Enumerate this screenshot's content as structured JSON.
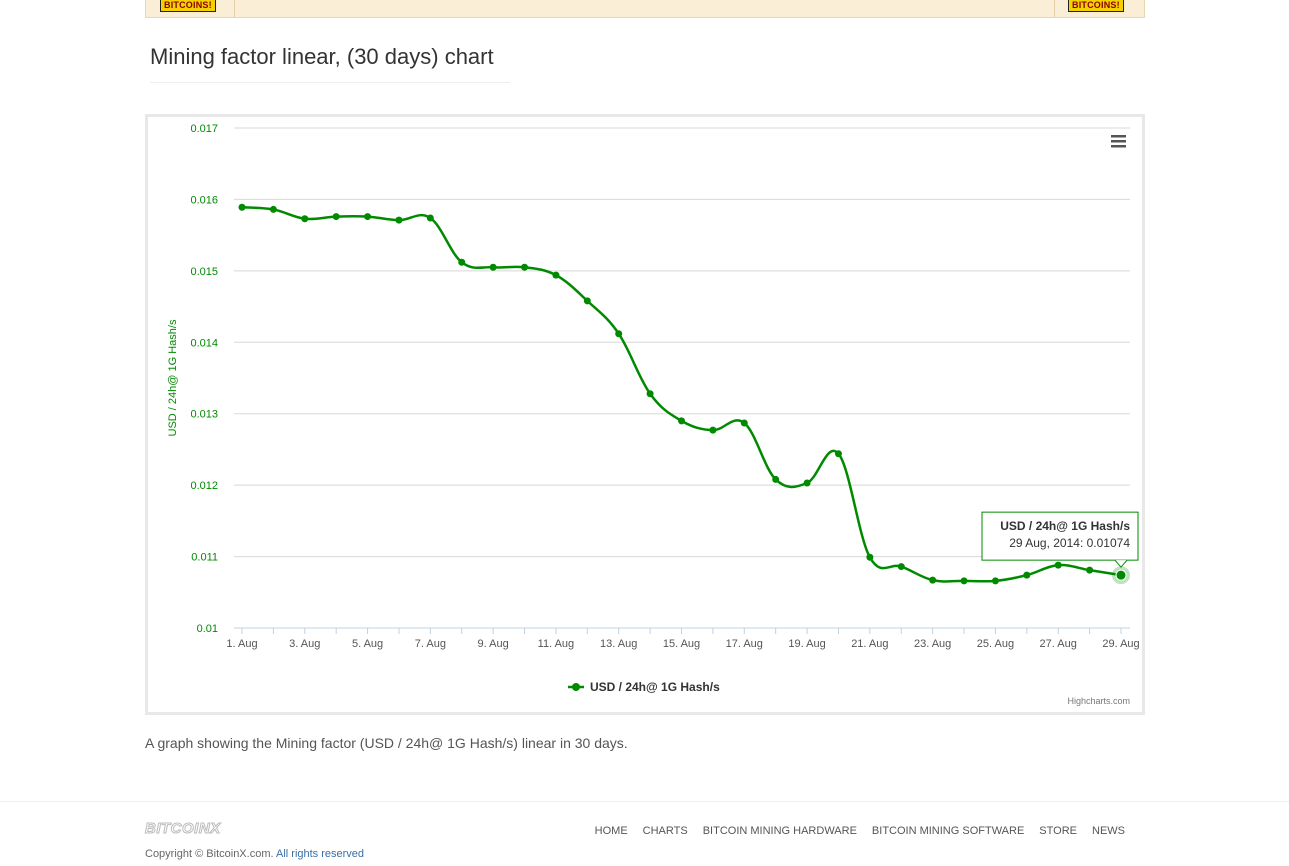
{
  "banner": {
    "left_badge": "BITCOINS!",
    "right_badge": "BITCOINS!"
  },
  "page_title": "Mining factor linear, (30 days) chart",
  "caption": "A graph showing the Mining factor (USD / 24h@ 1G Hash/s) linear in 30 days.",
  "footer": {
    "logo": "BITCOINX",
    "copyright": "Copyright © BitcoinX.com.",
    "rights": "All rights reserved",
    "nav": [
      "HOME",
      "CHARTS",
      "BITCOIN MINING HARDWARE",
      "BITCOIN MINING SOFTWARE",
      "STORE",
      "NEWS"
    ]
  },
  "chart_data": {
    "type": "line",
    "title": "",
    "xlabel": "",
    "ylabel": "USD / 24h@ 1G Hash/s",
    "x": [
      "1. Aug",
      "2. Aug",
      "3. Aug",
      "4. Aug",
      "5. Aug",
      "6. Aug",
      "7. Aug",
      "8. Aug",
      "9. Aug",
      "10. Aug",
      "11. Aug",
      "12. Aug",
      "13. Aug",
      "14. Aug",
      "15. Aug",
      "16. Aug",
      "17. Aug",
      "18. Aug",
      "19. Aug",
      "20. Aug",
      "21. Aug",
      "22. Aug",
      "23. Aug",
      "24. Aug",
      "25. Aug",
      "26. Aug",
      "27. Aug",
      "28. Aug",
      "29. Aug"
    ],
    "x_tick_labels": [
      "1. Aug",
      "3. Aug",
      "5. Aug",
      "7. Aug",
      "9. Aug",
      "11. Aug",
      "13. Aug",
      "15. Aug",
      "17. Aug",
      "19. Aug",
      "21. Aug",
      "23. Aug",
      "25. Aug",
      "27. Aug",
      "29. Aug"
    ],
    "y_ticks": [
      "0.01",
      "0.011",
      "0.012",
      "0.013",
      "0.014",
      "0.015",
      "0.016",
      "0.017"
    ],
    "ylim": [
      0.01,
      0.017
    ],
    "series": [
      {
        "name": "USD / 24h@ 1G Hash/s",
        "color": "#008a00",
        "values": [
          0.01589,
          0.01586,
          0.01573,
          0.01576,
          0.01576,
          0.01571,
          0.01574,
          0.01512,
          0.01505,
          0.01505,
          0.01494,
          0.01458,
          0.01412,
          0.01328,
          0.0129,
          0.01277,
          0.01287,
          0.01208,
          0.01203,
          0.01244,
          0.01099,
          0.01086,
          0.01067,
          0.01066,
          0.01066,
          0.01074,
          0.01088,
          0.01081,
          0.01074
        ]
      }
    ],
    "grid": true,
    "legend": "bottom-center",
    "tooltip": {
      "title": "USD / 24h@ 1G Hash/s",
      "text": "29 Aug, 2014: 0.01074"
    },
    "credit": "Highcharts.com"
  }
}
